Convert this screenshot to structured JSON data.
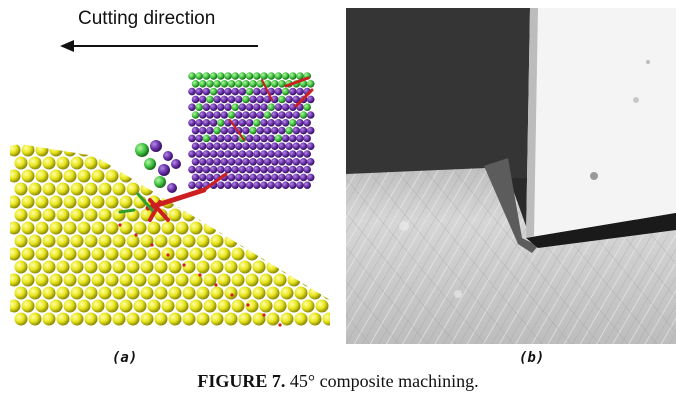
{
  "figure": {
    "panel_a": {
      "direction_label": "Cutting direction",
      "sublabel": "(a)"
    },
    "panel_b": {
      "sublabel": "(b)"
    },
    "caption": {
      "number": "FIGURE 7.",
      "text": " 45° composite machining."
    }
  },
  "colors": {
    "workpiece_atoms": "#e6e61a",
    "tool_atoms_purple": "#6a2fa8",
    "tool_atoms_green": "#3ec23e",
    "bonds_red": "#cc1f1f",
    "photo_tool_dark": "#262626",
    "photo_workpiece": "#c9c9c9"
  }
}
